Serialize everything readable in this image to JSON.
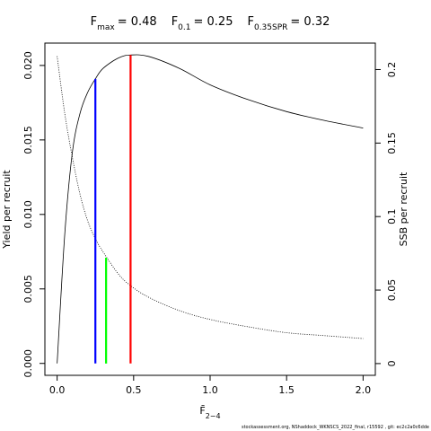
{
  "chart_data": {
    "type": "line",
    "refs": [
      {
        "symbol": "F",
        "sub": "max",
        "text": "= 0.48",
        "x": 0.48,
        "y": 0.0207,
        "color": "#ff0000"
      },
      {
        "symbol": "F",
        "sub": "0.1",
        "text": "= 0.25",
        "x": 0.25,
        "y": 0.0191,
        "color": "#0000ff"
      },
      {
        "symbol": "F",
        "sub": "0.35SPR",
        "text": "= 0.32",
        "x": 0.32,
        "y": 0.072,
        "axis": "y2",
        "color": "#00ff00"
      }
    ],
    "xlabel": {
      "text": "F̄",
      "sub": "2−4"
    },
    "ylabel": "Yield per recruit",
    "y2label": "SSB per recruit",
    "footer": "stockassessment.org, NShaddock_WKNSCS_2022_final, r15592 , git: ec2c2a0c6dde",
    "x": [
      0,
      0.05,
      0.1,
      0.15,
      0.2,
      0.25,
      0.3,
      0.4,
      0.48,
      0.6,
      0.8,
      1.0,
      1.25,
      1.5,
      1.75,
      2.0
    ],
    "series": [
      {
        "name": "Yield per recruit",
        "color": "#000000",
        "dash": false,
        "values": [
          0,
          0.0087,
          0.0142,
          0.0168,
          0.0182,
          0.0191,
          0.0198,
          0.0205,
          0.0207,
          0.0206,
          0.0198,
          0.0187,
          0.0177,
          0.0169,
          0.0163,
          0.0158
        ]
      },
      {
        "name": "SSB per recruit",
        "color": "#000000",
        "dash": true,
        "axis": "y2",
        "values": [
          0.209,
          0.17,
          0.14,
          0.115,
          0.097,
          0.085,
          0.076,
          0.061,
          0.053,
          0.045,
          0.036,
          0.03,
          0.025,
          0.021,
          0.019,
          0.017
        ]
      }
    ],
    "xlim": [
      -0.08,
      2.08
    ],
    "xticks": [
      {
        "value": 0,
        "label": "0.0"
      },
      0.5,
      {
        "value": 1,
        "label": "1.0"
      },
      1.5,
      {
        "value": 2,
        "label": "2.0"
      }
    ],
    "ylim": [
      -0.0008,
      0.0215
    ],
    "yticks": [
      {
        "value": 0,
        "label": "0.000"
      },
      {
        "value": 0.005,
        "label": "0.005"
      },
      {
        "value": 0.01,
        "label": "0.010"
      },
      {
        "value": 0.015,
        "label": "0.015"
      },
      {
        "value": 0.02,
        "label": "0.020"
      }
    ],
    "y2lim": [
      -0.008,
      0.218
    ],
    "y2ticks": [
      0,
      0.05,
      0.1,
      0.15,
      0.2
    ]
  }
}
